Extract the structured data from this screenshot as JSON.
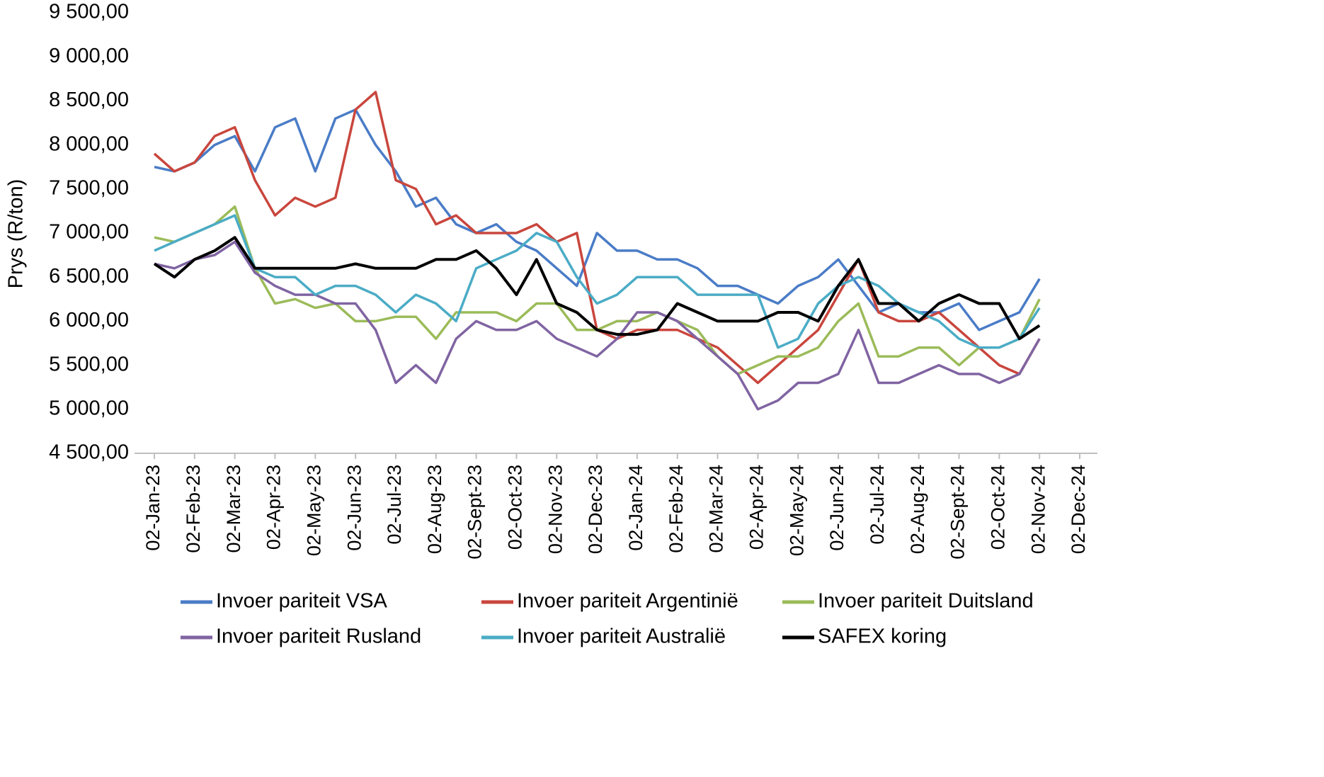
{
  "chart_data": {
    "type": "line",
    "y_label": "Prys (R/ton)",
    "categories": [
      "02-Jan-23",
      null,
      "02-Feb-23",
      null,
      "02-Mar-23",
      null,
      "02-Apr-23",
      null,
      "02-May-23",
      null,
      "02-Jun-23",
      null,
      "02-Jul-23",
      null,
      "02-Aug-23",
      null,
      "02-Sept-23",
      null,
      "02-Oct-23",
      null,
      "02-Nov-23",
      null,
      "02-Dec-23",
      null,
      "02-Jan-24",
      null,
      "02-Feb-24",
      null,
      "02-Mar-24",
      null,
      "02-Apr-24",
      null,
      "02-May-24",
      null,
      "02-Jun-24",
      null,
      "02-Jul-24",
      null,
      "02-Aug-24",
      null,
      "02-Sept-24",
      null,
      "02-Oct-24",
      null,
      "02-Nov-24",
      null,
      "02-Dec-24"
    ],
    "series": [
      {
        "name": "Invoer pariteit VSA",
        "color": "#4a7cc7",
        "values": [
          7750,
          7700,
          7800,
          8000,
          8100,
          7700,
          8200,
          8300,
          7700,
          8300,
          8400,
          8000,
          7700,
          7300,
          7400,
          7100,
          7000,
          7100,
          6900,
          6800,
          6600,
          6400,
          7000,
          6800,
          6800,
          6700,
          6700,
          6600,
          6400,
          6400,
          6300,
          6200,
          6400,
          6500,
          6700,
          6400,
          6100,
          6200,
          6100,
          6100,
          6200,
          5900,
          6000,
          6100,
          6480,
          null,
          null
        ]
      },
      {
        "name": "Invoer pariteit Argentinië",
        "color": "#c9463d",
        "values": [
          7900,
          7700,
          7800,
          8100,
          8200,
          7600,
          7200,
          7400,
          7300,
          7400,
          8400,
          8600,
          7600,
          7500,
          7100,
          7200,
          7000,
          7000,
          7000,
          7100,
          6900,
          7000,
          5900,
          5800,
          5900,
          5900,
          5900,
          5800,
          5700,
          5500,
          5300,
          5500,
          5700,
          5900,
          6300,
          6700,
          6100,
          6000,
          6000,
          6100,
          5900,
          5700,
          5500,
          5400,
          5800,
          null,
          null
        ]
      },
      {
        "name": "Invoer pariteit Duitsland",
        "color": "#9bbb59",
        "values": [
          6950,
          6900,
          7000,
          7100,
          7300,
          6600,
          6200,
          6250,
          6150,
          6200,
          6000,
          6000,
          6050,
          6050,
          5800,
          6100,
          6100,
          6100,
          6000,
          6200,
          6200,
          5900,
          5900,
          6000,
          6000,
          6100,
          6000,
          5900,
          5600,
          5400,
          5500,
          5600,
          5600,
          5700,
          6000,
          6200,
          5600,
          5600,
          5700,
          5700,
          5500,
          5700,
          5700,
          5800,
          6250,
          null,
          null
        ]
      },
      {
        "name": "Invoer pariteit Rusland",
        "color": "#8064a2",
        "values": [
          6650,
          6600,
          6700,
          6750,
          6900,
          6550,
          6400,
          6300,
          6300,
          6200,
          6200,
          5900,
          5300,
          5500,
          5300,
          5800,
          6000,
          5900,
          5900,
          6000,
          5800,
          5700,
          5600,
          5800,
          6100,
          6100,
          6000,
          5800,
          5600,
          5400,
          5000,
          5100,
          5300,
          5300,
          5400,
          5900,
          5300,
          5300,
          5400,
          5500,
          5400,
          5400,
          5300,
          5400,
          5800,
          null,
          null
        ]
      },
      {
        "name": "Invoer pariteit Australië",
        "color": "#4bacc6",
        "values": [
          6800,
          6900,
          7000,
          7100,
          7200,
          6600,
          6500,
          6500,
          6300,
          6400,
          6400,
          6300,
          6100,
          6300,
          6200,
          6000,
          6600,
          6700,
          6800,
          7000,
          6900,
          6500,
          6200,
          6300,
          6500,
          6500,
          6500,
          6300,
          6300,
          6300,
          6300,
          5700,
          5800,
          6200,
          6400,
          6500,
          6400,
          6200,
          6100,
          6000,
          5800,
          5700,
          5700,
          5800,
          6150,
          null,
          null
        ]
      },
      {
        "name": "SAFEX koring",
        "color": "#000000",
        "values": [
          6650,
          6500,
          6700,
          6800,
          6950,
          6600,
          6600,
          6600,
          6600,
          6600,
          6650,
          6600,
          6600,
          6600,
          6700,
          6700,
          6800,
          6600,
          6300,
          6700,
          6200,
          6100,
          5900,
          5850,
          5850,
          5900,
          6200,
          6100,
          6000,
          6000,
          6000,
          6100,
          6100,
          6000,
          6400,
          6700,
          6200,
          6200,
          6000,
          6200,
          6300,
          6200,
          6200,
          5800,
          5950,
          null,
          null
        ]
      }
    ],
    "ylim": [
      4500,
      9500
    ],
    "yticks": [
      {
        "value": 4500,
        "label": "4 500,00"
      },
      {
        "value": 5000,
        "label": "5 000,00"
      },
      {
        "value": 5500,
        "label": "5 500,00"
      },
      {
        "value": 6000,
        "label": "6 000,00"
      },
      {
        "value": 6500,
        "label": "6 500,00"
      },
      {
        "value": 7000,
        "label": "7 000,00"
      },
      {
        "value": 7500,
        "label": "7 500,00"
      },
      {
        "value": 8000,
        "label": "8 000,00"
      },
      {
        "value": 8500,
        "label": "8 500,00"
      },
      {
        "value": 9000,
        "label": "9 000,00"
      },
      {
        "value": 9500,
        "label": "9 500,00"
      }
    ],
    "grid": false,
    "legend": "bottom"
  }
}
